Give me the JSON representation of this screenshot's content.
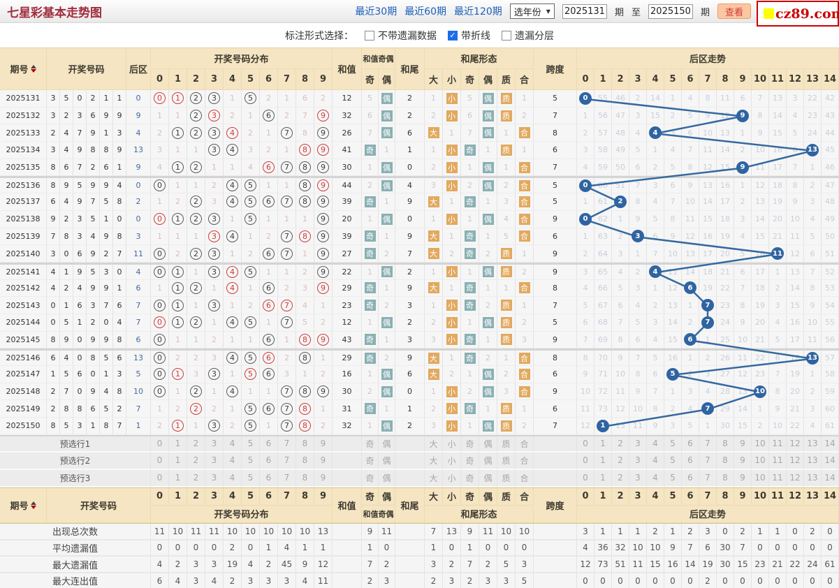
{
  "title": "七星彩基本走势图",
  "logo": {
    "text": "cz89.com"
  },
  "toolbar": {
    "links": [
      "最近30期",
      "最近60期",
      "最近120期"
    ],
    "year_select": "选年份",
    "from_value": "2025131",
    "period_label": "期",
    "to_label": "至",
    "to_value": "2025150",
    "view_button": "查看"
  },
  "filterbar": {
    "label": "标注形式选择：",
    "options": [
      {
        "label": "不带遗漏数据",
        "checked": false
      },
      {
        "label": "带折线",
        "checked": true
      },
      {
        "label": "遗漏分层",
        "checked": false
      }
    ]
  },
  "header": {
    "period": "期号",
    "numbers": "开奖号码",
    "back": "后区",
    "dist": "开奖号码分布",
    "dist_cols": [
      "0",
      "1",
      "2",
      "3",
      "4",
      "5",
      "6",
      "7",
      "8",
      "9"
    ],
    "sum": "和值",
    "sum_oe": "和值奇偶",
    "oe_cols": [
      "奇",
      "偶"
    ],
    "tail": "和尾",
    "pattern": "和尾形态",
    "pattern_cols": [
      "大",
      "小",
      "奇",
      "偶",
      "质",
      "合"
    ],
    "span": "跨度",
    "back_trend": "后区走势",
    "back_cols": [
      "0",
      "1",
      "2",
      "3",
      "4",
      "5",
      "6",
      "7",
      "8",
      "9",
      "10",
      "11",
      "12",
      "13",
      "14"
    ]
  },
  "rows": [
    {
      "period": "2025131",
      "nums": [
        3,
        5,
        0,
        2,
        1,
        1
      ],
      "back": 0,
      "dist": [
        "R0",
        "R1",
        "C2",
        "C3",
        "1",
        "C5",
        "2",
        "1",
        "6",
        "2"
      ],
      "sum": 12,
      "oe": [
        "5",
        "B"
      ],
      "tail": 2,
      "pattern": [
        "1",
        "B",
        "5",
        "B",
        "B",
        "1"
      ],
      "span": 5,
      "back_miss": [
        null,
        "55",
        "46",
        "2",
        "14",
        "1",
        "4",
        "8",
        "11",
        "6",
        "7",
        "13",
        "3",
        "22",
        "42"
      ]
    },
    {
      "period": "2025132",
      "nums": [
        3,
        2,
        3,
        6,
        9,
        9
      ],
      "back": 9,
      "dist": [
        "1",
        "1",
        "C2",
        "R3",
        "2",
        "1",
        "C6",
        "2",
        "7",
        "R9"
      ],
      "sum": 32,
      "oe": [
        "6",
        "B"
      ],
      "tail": 2,
      "pattern": [
        "2",
        "B",
        "6",
        "B",
        "B",
        "2"
      ],
      "span": 7,
      "back_miss": [
        "1",
        "56",
        "47",
        "3",
        "15",
        "2",
        "5",
        "9",
        "12",
        null,
        "8",
        "14",
        "4",
        "23",
        "43"
      ]
    },
    {
      "period": "2025133",
      "nums": [
        2,
        4,
        7,
        9,
        1,
        3
      ],
      "back": 4,
      "dist": [
        "2",
        "C1",
        "C2",
        "C3",
        "R4",
        "2",
        "1",
        "C7",
        "8",
        "C9"
      ],
      "sum": 26,
      "oe": [
        "7",
        "B"
      ],
      "tail": 6,
      "pattern": [
        "B",
        "1",
        "7",
        "B",
        "1",
        "B"
      ],
      "span": 8,
      "back_miss": [
        "2",
        "57",
        "48",
        "4",
        null,
        "3",
        "6",
        "10",
        "13",
        "1",
        "9",
        "15",
        "5",
        "24",
        "44"
      ]
    },
    {
      "period": "2025134",
      "nums": [
        3,
        4,
        9,
        8,
        8,
        9
      ],
      "back": 13,
      "dist": [
        "3",
        "1",
        "1",
        "C3",
        "C4",
        "3",
        "2",
        "1",
        "R8",
        "R9"
      ],
      "sum": 41,
      "oe": [
        "B",
        "1"
      ],
      "tail": 1,
      "pattern": [
        "1",
        "B",
        "B",
        "1",
        "B",
        "1"
      ],
      "span": 6,
      "back_miss": [
        "3",
        "58",
        "49",
        "5",
        "1",
        "4",
        "7",
        "11",
        "14",
        "2",
        "10",
        "16",
        "6",
        null,
        "45"
      ]
    },
    {
      "period": "2025135",
      "nums": [
        8,
        6,
        7,
        2,
        6,
        1
      ],
      "back": 9,
      "dist": [
        "4",
        "C1",
        "C2",
        "1",
        "1",
        "4",
        "R6",
        "C7",
        "C8",
        "C9"
      ],
      "sum": 30,
      "oe": [
        "1",
        "B"
      ],
      "tail": 0,
      "pattern": [
        "2",
        "B",
        "1",
        "B",
        "1",
        "B"
      ],
      "span": 7,
      "back_miss": [
        "4",
        "59",
        "50",
        "6",
        "2",
        "5",
        "8",
        "12",
        "15",
        null,
        "11",
        "17",
        "7",
        "1",
        "46"
      ]
    },
    {
      "period": "2025136",
      "nums": [
        8,
        9,
        5,
        9,
        9,
        4
      ],
      "back": 0,
      "dist": [
        "C0",
        "1",
        "1",
        "2",
        "C4",
        "C5",
        "1",
        "1",
        "C8",
        "R9"
      ],
      "sum": 44,
      "oe": [
        "2",
        "B"
      ],
      "tail": 4,
      "pattern": [
        "3",
        "B",
        "2",
        "B",
        "2",
        "B"
      ],
      "span": 5,
      "back_miss": [
        null,
        "60",
        "51",
        "7",
        "3",
        "6",
        "9",
        "13",
        "16",
        "1",
        "12",
        "18",
        "8",
        "2",
        "47"
      ]
    },
    {
      "period": "2025137",
      "nums": [
        6,
        4,
        9,
        7,
        5,
        8
      ],
      "back": 2,
      "dist": [
        "1",
        "2",
        "C2",
        "3",
        "C4",
        "C5",
        "C6",
        "C7",
        "C8",
        "C9"
      ],
      "sum": 39,
      "oe": [
        "B",
        "1"
      ],
      "tail": 9,
      "pattern": [
        "B",
        "1",
        "B",
        "1",
        "3",
        "B"
      ],
      "span": 5,
      "back_miss": [
        "1",
        "61",
        null,
        "8",
        "4",
        "7",
        "10",
        "14",
        "17",
        "2",
        "13",
        "19",
        "9",
        "3",
        "48"
      ]
    },
    {
      "period": "2025138",
      "nums": [
        9,
        2,
        3,
        5,
        1,
        0
      ],
      "back": 0,
      "dist": [
        "R0",
        "C1",
        "C2",
        "C3",
        "1",
        "C5",
        "1",
        "1",
        "1",
        "C9"
      ],
      "sum": 20,
      "oe": [
        "1",
        "B"
      ],
      "tail": 0,
      "pattern": [
        "1",
        "B",
        "1",
        "B",
        "4",
        "B"
      ],
      "span": 9,
      "back_miss": [
        null,
        "62",
        "1",
        "9",
        "5",
        "8",
        "11",
        "15",
        "18",
        "3",
        "14",
        "20",
        "10",
        "4",
        "49"
      ]
    },
    {
      "period": "2025139",
      "nums": [
        7,
        8,
        3,
        4,
        9,
        8
      ],
      "back": 3,
      "dist": [
        "1",
        "1",
        "1",
        "R3",
        "C4",
        "1",
        "2",
        "C7",
        "R8",
        "C9"
      ],
      "sum": 39,
      "oe": [
        "B",
        "1"
      ],
      "tail": 9,
      "pattern": [
        "B",
        "1",
        "B",
        "1",
        "5",
        "B"
      ],
      "span": 6,
      "back_miss": [
        "1",
        "63",
        "2",
        null,
        "6",
        "9",
        "12",
        "16",
        "19",
        "4",
        "15",
        "21",
        "11",
        "5",
        "50"
      ]
    },
    {
      "period": "2025140",
      "nums": [
        3,
        0,
        6,
        9,
        2,
        7
      ],
      "back": 11,
      "dist": [
        "C0",
        "2",
        "C2",
        "C3",
        "1",
        "2",
        "C6",
        "C7",
        "1",
        "C9"
      ],
      "sum": 27,
      "oe": [
        "B",
        "2"
      ],
      "tail": 7,
      "pattern": [
        "B",
        "2",
        "B",
        "2",
        "B",
        "1"
      ],
      "span": 9,
      "back_miss": [
        "2",
        "64",
        "3",
        "1",
        "7",
        "10",
        "13",
        "17",
        "20",
        "5",
        "16",
        null,
        "12",
        "6",
        "51"
      ]
    },
    {
      "period": "2025141",
      "nums": [
        4,
        1,
        9,
        5,
        3,
        0
      ],
      "back": 4,
      "dist": [
        "C0",
        "C1",
        "1",
        "C3",
        "R4",
        "C5",
        "1",
        "1",
        "2",
        "C9"
      ],
      "sum": 22,
      "oe": [
        "1",
        "B"
      ],
      "tail": 2,
      "pattern": [
        "1",
        "B",
        "1",
        "B",
        "B",
        "2"
      ],
      "span": 9,
      "back_miss": [
        "3",
        "65",
        "4",
        "2",
        null,
        "11",
        "14",
        "18",
        "21",
        "6",
        "17",
        "1",
        "13",
        "7",
        "52"
      ]
    },
    {
      "period": "2025142",
      "nums": [
        4,
        2,
        4,
        9,
        9,
        1
      ],
      "back": 6,
      "dist": [
        "1",
        "C1",
        "C2",
        "1",
        "R4",
        "1",
        "C6",
        "2",
        "3",
        "R9"
      ],
      "sum": 29,
      "oe": [
        "B",
        "1"
      ],
      "tail": 9,
      "pattern": [
        "B",
        "1",
        "B",
        "1",
        "1",
        "B"
      ],
      "span": 8,
      "back_miss": [
        "4",
        "66",
        "5",
        "3",
        "1",
        "12",
        null,
        "19",
        "22",
        "7",
        "18",
        "2",
        "14",
        "8",
        "53"
      ]
    },
    {
      "period": "2025143",
      "nums": [
        0,
        1,
        6,
        3,
        7,
        6
      ],
      "back": 7,
      "dist": [
        "C0",
        "C1",
        "1",
        "C3",
        "1",
        "2",
        "R6",
        "R7",
        "4",
        "1"
      ],
      "sum": 23,
      "oe": [
        "B",
        "2"
      ],
      "tail": 3,
      "pattern": [
        "1",
        "B",
        "B",
        "2",
        "B",
        "1"
      ],
      "span": 7,
      "back_miss": [
        "5",
        "67",
        "6",
        "4",
        "2",
        "13",
        "1",
        null,
        "23",
        "8",
        "19",
        "3",
        "15",
        "9",
        "54"
      ]
    },
    {
      "period": "2025144",
      "nums": [
        0,
        5,
        1,
        2,
        0,
        4
      ],
      "back": 7,
      "dist": [
        "R0",
        "C1",
        "C2",
        "1",
        "C4",
        "C5",
        "1",
        "C7",
        "5",
        "2"
      ],
      "sum": 12,
      "oe": [
        "1",
        "B"
      ],
      "tail": 2,
      "pattern": [
        "2",
        "B",
        "1",
        "B",
        "B",
        "2"
      ],
      "span": 5,
      "back_miss": [
        "6",
        "68",
        "7",
        "5",
        "3",
        "14",
        "2",
        null,
        "24",
        "9",
        "20",
        "4",
        "16",
        "10",
        "55"
      ]
    },
    {
      "period": "2025145",
      "nums": [
        8,
        9,
        0,
        9,
        9,
        8
      ],
      "back": 6,
      "dist": [
        "C0",
        "1",
        "1",
        "2",
        "1",
        "1",
        "C6",
        "1",
        "R8",
        "R9"
      ],
      "sum": 43,
      "oe": [
        "B",
        "1"
      ],
      "tail": 3,
      "pattern": [
        "3",
        "B",
        "B",
        "1",
        "B",
        "3"
      ],
      "span": 9,
      "back_miss": [
        "7",
        "69",
        "8",
        "6",
        "4",
        "15",
        null,
        "1",
        "25",
        "10",
        "21",
        "5",
        "17",
        "11",
        "56"
      ]
    },
    {
      "period": "2025146",
      "nums": [
        6,
        4,
        0,
        8,
        5,
        6
      ],
      "back": 13,
      "dist": [
        "C0",
        "2",
        "2",
        "3",
        "C4",
        "C5",
        "R6",
        "2",
        "C8",
        "1"
      ],
      "sum": 29,
      "oe": [
        "B",
        "2"
      ],
      "tail": 9,
      "pattern": [
        "B",
        "1",
        "B",
        "2",
        "1",
        "B"
      ],
      "span": 8,
      "back_miss": [
        "8",
        "70",
        "9",
        "7",
        "5",
        "16",
        "1",
        "2",
        "26",
        "11",
        "22",
        "6",
        "18",
        null,
        "57"
      ]
    },
    {
      "period": "2025147",
      "nums": [
        1,
        5,
        6,
        0,
        1,
        3
      ],
      "back": 5,
      "dist": [
        "C0",
        "R1",
        "3",
        "C3",
        "1",
        "R5",
        "C6",
        "3",
        "1",
        "2"
      ],
      "sum": 16,
      "oe": [
        "1",
        "B"
      ],
      "tail": 6,
      "pattern": [
        "B",
        "2",
        "1",
        "B",
        "2",
        "B"
      ],
      "span": 6,
      "back_miss": [
        "9",
        "71",
        "10",
        "8",
        "6",
        null,
        "2",
        "3",
        "27",
        "12",
        "23",
        "7",
        "19",
        "1",
        "58"
      ]
    },
    {
      "period": "2025148",
      "nums": [
        2,
        7,
        0,
        9,
        4,
        8
      ],
      "back": 10,
      "dist": [
        "C0",
        "1",
        "C2",
        "1",
        "C4",
        "1",
        "1",
        "C7",
        "C8",
        "C9"
      ],
      "sum": 30,
      "oe": [
        "2",
        "B"
      ],
      "tail": 0,
      "pattern": [
        "1",
        "B",
        "2",
        "B",
        "3",
        "B"
      ],
      "span": 9,
      "back_miss": [
        "10",
        "72",
        "11",
        "9",
        "7",
        "1",
        "3",
        "4",
        "28",
        "13",
        null,
        "8",
        "20",
        "2",
        "59"
      ]
    },
    {
      "period": "2025149",
      "nums": [
        2,
        8,
        8,
        6,
        5,
        2
      ],
      "back": 7,
      "dist": [
        "1",
        "2",
        "R2",
        "2",
        "1",
        "C5",
        "C6",
        "C7",
        "R8",
        "1"
      ],
      "sum": 31,
      "oe": [
        "B",
        "1"
      ],
      "tail": 1,
      "pattern": [
        "2",
        "B",
        "B",
        "1",
        "B",
        "1"
      ],
      "span": 6,
      "back_miss": [
        "11",
        "73",
        "12",
        "10",
        "8",
        "2",
        "4",
        null,
        "29",
        "14",
        "1",
        "9",
        "21",
        "3",
        "60"
      ]
    },
    {
      "period": "2025150",
      "nums": [
        8,
        5,
        3,
        1,
        8,
        7
      ],
      "back": 1,
      "dist": [
        "2",
        "R1",
        "1",
        "C3",
        "2",
        "C5",
        "1",
        "C7",
        "R8",
        "2"
      ],
      "sum": 32,
      "oe": [
        "1",
        "B"
      ],
      "tail": 2,
      "pattern": [
        "3",
        "B",
        "1",
        "B",
        "B",
        "2"
      ],
      "span": 7,
      "back_miss": [
        "12",
        null,
        "13",
        "11",
        "9",
        "3",
        "5",
        "1",
        "30",
        "15",
        "2",
        "10",
        "22",
        "4",
        "61"
      ]
    }
  ],
  "presel_rows": [
    "预选行1",
    "预选行2",
    "预选行3"
  ],
  "stats": [
    {
      "label": "出现总次数",
      "dist": [
        "11",
        "10",
        "11",
        "11",
        "10",
        "10",
        "10",
        "10",
        "10",
        "13"
      ],
      "oe": [
        "9",
        "11"
      ],
      "pattern": [
        "7",
        "13",
        "9",
        "11",
        "10",
        "10"
      ],
      "back": [
        "3",
        "1",
        "1",
        "1",
        "2",
        "1",
        "2",
        "3",
        "0",
        "2",
        "1",
        "1",
        "0",
        "2",
        "0"
      ]
    },
    {
      "label": "平均遗漏值",
      "dist": [
        "0",
        "0",
        "0",
        "0",
        "2",
        "0",
        "1",
        "4",
        "1",
        "1"
      ],
      "oe": [
        "1",
        "0"
      ],
      "pattern": [
        "1",
        "0",
        "1",
        "0",
        "0",
        "0"
      ],
      "back": [
        "4",
        "36",
        "32",
        "10",
        "10",
        "9",
        "7",
        "6",
        "30",
        "7",
        "0",
        "0",
        "0",
        "0",
        "0"
      ]
    },
    {
      "label": "最大遗漏值",
      "dist": [
        "4",
        "2",
        "3",
        "3",
        "19",
        "4",
        "2",
        "45",
        "9",
        "12"
      ],
      "oe": [
        "7",
        "2"
      ],
      "pattern": [
        "3",
        "2",
        "7",
        "2",
        "5",
        "3"
      ],
      "back": [
        "12",
        "73",
        "51",
        "11",
        "15",
        "16",
        "14",
        "19",
        "30",
        "15",
        "23",
        "21",
        "22",
        "24",
        "61"
      ]
    },
    {
      "label": "最大连出值",
      "dist": [
        "6",
        "4",
        "3",
        "4",
        "2",
        "3",
        "3",
        "3",
        "4",
        "11"
      ],
      "oe": [
        "2",
        "3"
      ],
      "pattern": [
        "2",
        "3",
        "2",
        "3",
        "3",
        "5"
      ],
      "back": [
        "0",
        "0",
        "0",
        "0",
        "0",
        "0",
        "0",
        "2",
        "0",
        "0",
        "0",
        "0",
        "0",
        "0",
        "0"
      ]
    }
  ],
  "colors": {
    "title_red": "#a22c3c",
    "link_blue": "#1a5eb8",
    "header_bg": "#f5e5c2",
    "badge_orange": "#e2a95e",
    "badge_teal": "#8ab0b3",
    "line_blue": "#34699f",
    "back_badge_blue": "#2f64a2",
    "circle_red": "#cf3a3a",
    "circle_gray": "#5a5a5a",
    "miss_pink": "#dcbcbc",
    "miss_blue_gray": "#c8cfda",
    "back_number_blue": "#44699d",
    "logo_red": "#cc0000",
    "logo_yellow": "#ffff00",
    "button_orange": "#fbc7a0",
    "checkbox_blue": "#1c6ee8"
  }
}
